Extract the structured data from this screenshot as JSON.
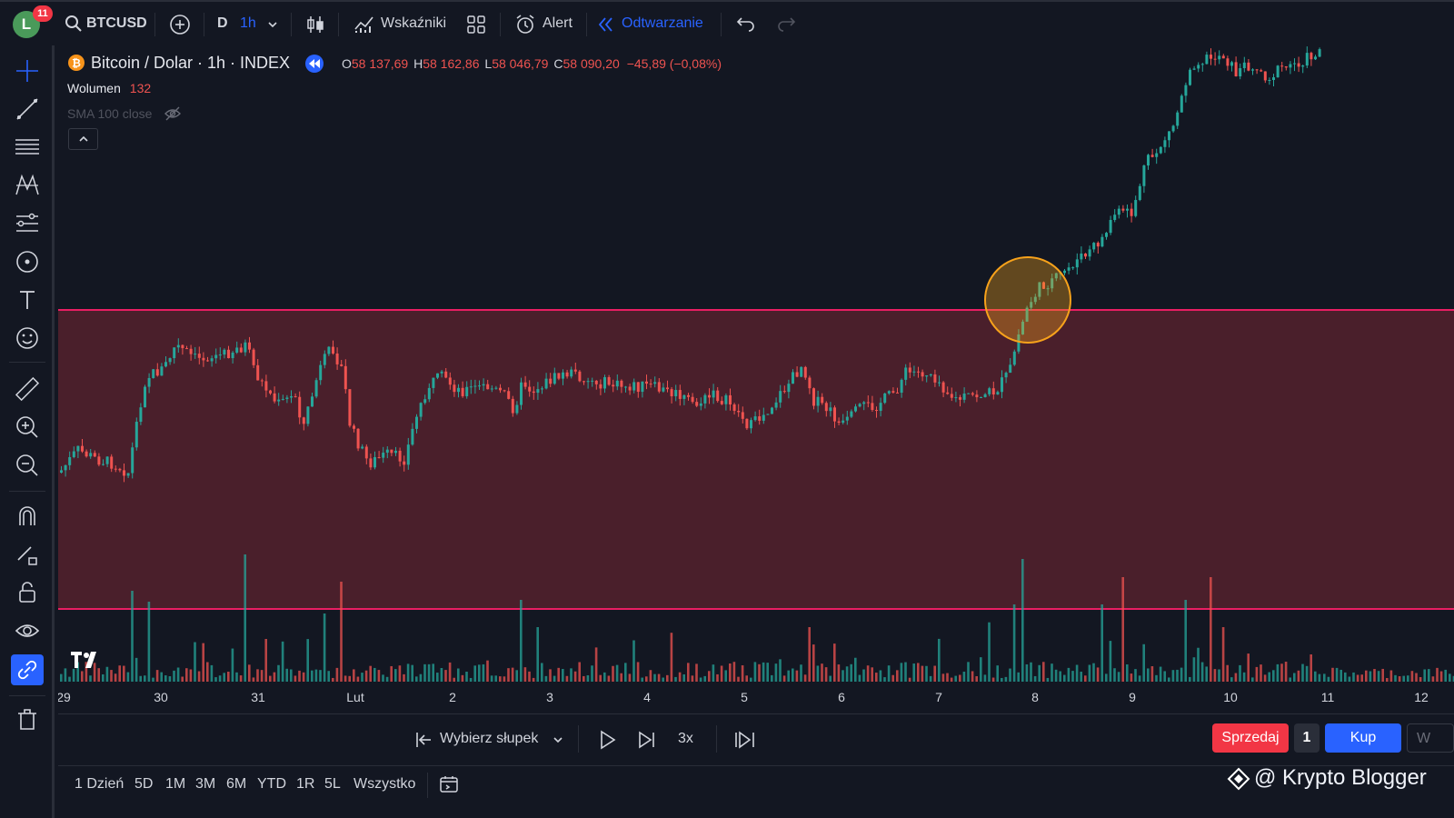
{
  "topbar": {
    "avatar_letter": "L",
    "notifications": "11",
    "symbol": "BTCUSD",
    "interval_day": "D",
    "interval_active": "1h",
    "indicators_label": "Wskaźniki",
    "alert_label": "Alert",
    "replay_label": "Odtwarzanie"
  },
  "legend": {
    "title": "Bitcoin / Dolar · 1h · INDEX",
    "o_label": "O",
    "o_value": "58 137,69",
    "h_label": "H",
    "h_value": "58 162,86",
    "l_label": "L",
    "l_value": "58 046,79",
    "c_label": "C",
    "c_value": "58 090,20",
    "change": "−45,89 (−0,08%)",
    "volume_label": "Wolumen",
    "volume_value": "132",
    "sma_label": "SMA 100 close"
  },
  "time_axis": [
    "29",
    "30",
    "31",
    "Lut",
    "2",
    "3",
    "4",
    "5",
    "6",
    "7",
    "8",
    "9",
    "10",
    "11",
    "12"
  ],
  "replay": {
    "select_bar_label": "Wybierz słupek",
    "speed": "3x"
  },
  "trading": {
    "sell_label": "Sprzedaj",
    "quantity": "1",
    "buy_label": "Kup",
    "extra_label": "W"
  },
  "ranges": [
    "1 Dzień",
    "5D",
    "1M",
    "3M",
    "6M",
    "YTD",
    "1R",
    "5L",
    "Wszystko"
  ],
  "watermark": "@ Krypto Blogger",
  "colors": {
    "up": "#26a69a",
    "down": "#ef5350",
    "zone_fill": "#4a1f2b",
    "zone_line": "#e91e63",
    "highlight": "#f7a21b",
    "accent": "#2962ff"
  },
  "icons": {
    "left_toolbar": [
      "crosshair-icon",
      "trendline-icon",
      "fib-icon",
      "pattern-icon",
      "forecast-icon",
      "shapes-icon",
      "text-icon",
      "emoji-icon",
      "ruler-icon",
      "zoom-in-icon",
      "zoom-out-icon",
      "magnet-icon",
      "pencil-lock-icon",
      "lock-icon",
      "eye-icon",
      "link-icon",
      "trash-icon"
    ]
  }
}
